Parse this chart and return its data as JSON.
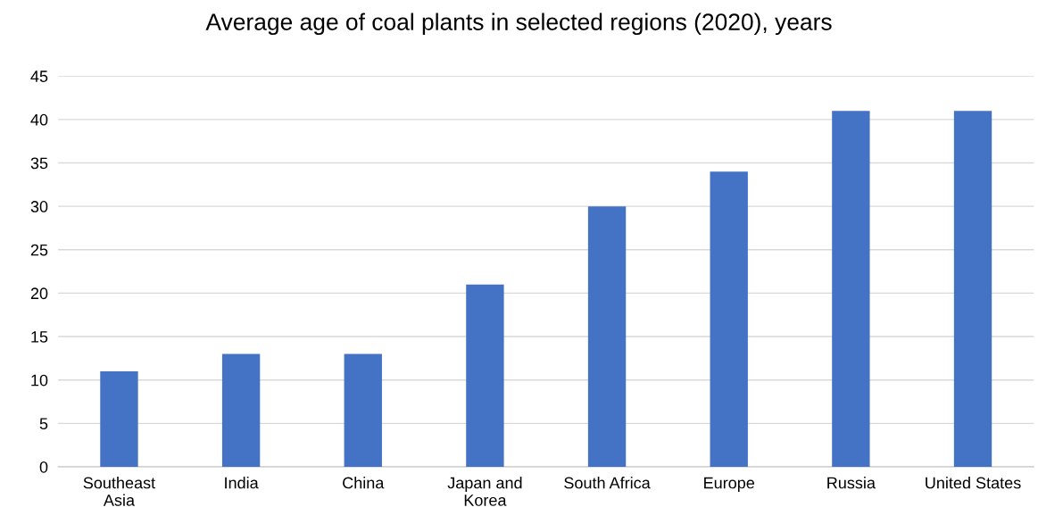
{
  "chart_data": {
    "type": "bar",
    "title": "Average age of coal plants in selected regions (2020), years",
    "categories": [
      "Southeast\nAsia",
      "India",
      "China",
      "Japan and\nKorea",
      "South Africa",
      "Europe",
      "Russia",
      "United States"
    ],
    "values": [
      11,
      13,
      13,
      21,
      30,
      34,
      41,
      41
    ],
    "color": "#4472c4",
    "ylim": [
      0,
      45
    ],
    "yticks": [
      0,
      5,
      10,
      15,
      20,
      25,
      30,
      35,
      40,
      45
    ],
    "grid": "y",
    "legend": false
  }
}
